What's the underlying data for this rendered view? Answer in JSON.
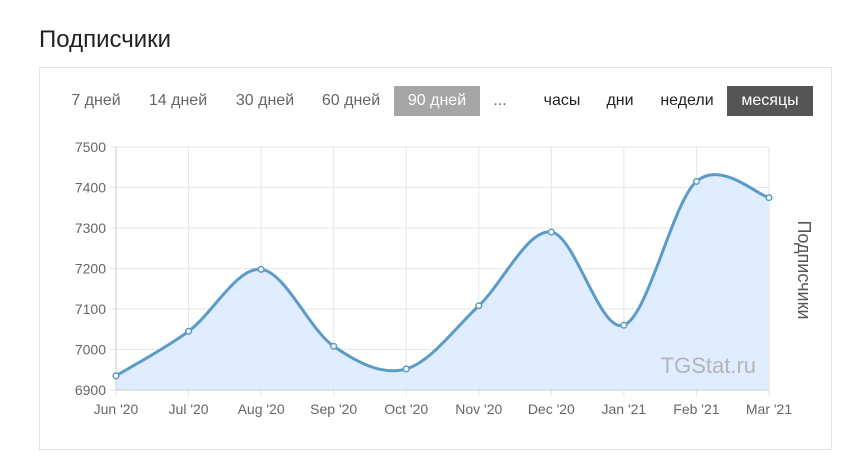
{
  "page": {
    "title": "Подписчики"
  },
  "range_buttons": [
    {
      "label": "7 дней",
      "active": false
    },
    {
      "label": "14 дней",
      "active": false
    },
    {
      "label": "30 дней",
      "active": false
    },
    {
      "label": "60 дней",
      "active": false
    },
    {
      "label": "90 дней",
      "active": true
    },
    {
      "label": "...",
      "active": false
    }
  ],
  "unit_buttons": [
    {
      "label": "часы",
      "active": false
    },
    {
      "label": "дни",
      "active": false
    },
    {
      "label": "недели",
      "active": false
    },
    {
      "label": "месяцы",
      "active": true
    }
  ],
  "watermark": "TGStat.ru",
  "colors": {
    "line": "#5b9bc8",
    "fill": "#ddeaff",
    "grid": "#e6e6e6",
    "active_range_bg": "#a6a6a6",
    "active_unit_bg": "#555555"
  },
  "chart_data": {
    "type": "area",
    "ylabel": "Подписчики",
    "ylim": [
      6900,
      7500
    ],
    "yticks": [
      6900,
      7000,
      7100,
      7200,
      7300,
      7400,
      7500
    ],
    "ytick_labels": [
      "6900",
      "7000",
      "7100",
      "7200",
      "7300",
      "7400",
      "7500"
    ],
    "categories": [
      "Jun '20",
      "Jul '20",
      "Aug '20",
      "Sep '20",
      "Oct '20",
      "Nov '20",
      "Dec '20",
      "Jan '21",
      "Feb '21",
      "Mar '21"
    ],
    "series": [
      {
        "values": [
          6935,
          7045,
          7198,
          7008,
          6952,
          7108,
          7290,
          7060,
          7415,
          7375
        ]
      }
    ],
    "grid": true,
    "legend": "none"
  }
}
